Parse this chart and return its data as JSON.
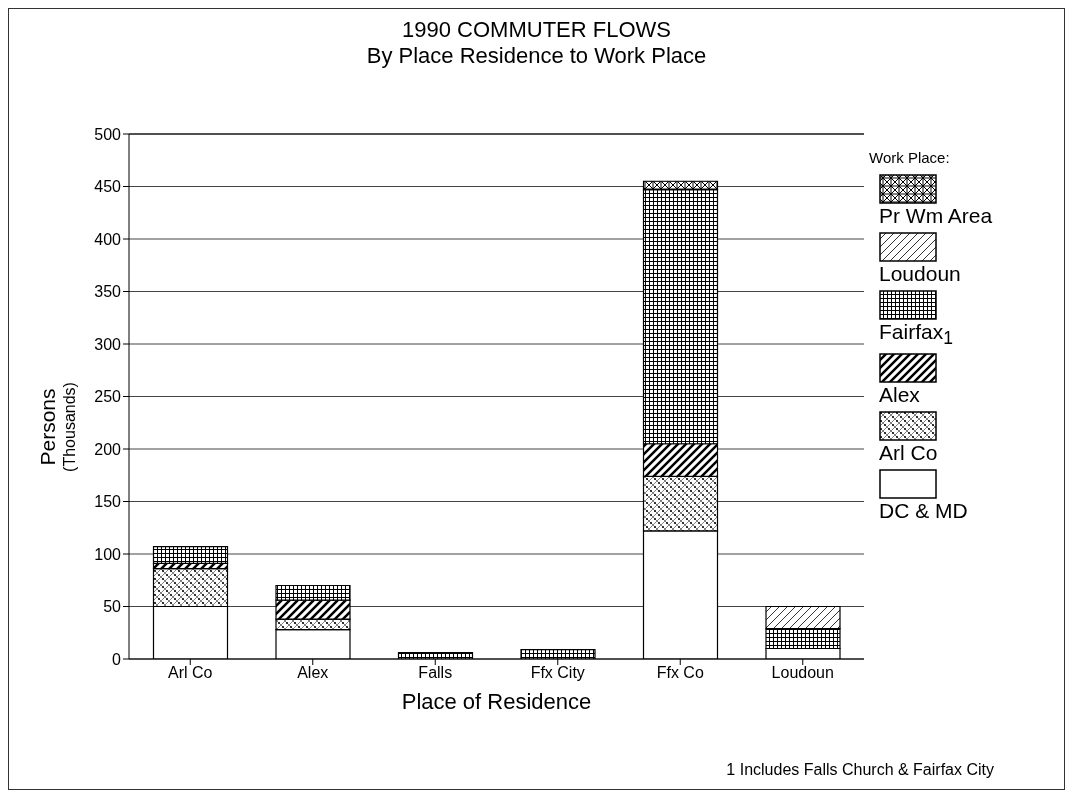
{
  "chart_data": {
    "type": "bar",
    "title": "1990 COMMUTER FLOWS",
    "subtitle": "By Place Residence to Work Place",
    "xlabel": "Place of Residence",
    "ylabel": "Persons\n(Thousands)",
    "legend_title": "Work Place:",
    "categories": [
      "Arl Co",
      "Alex",
      "Falls",
      "Ffx City",
      "Ffx Co",
      "Loudoun"
    ],
    "stacked": true,
    "series": [
      {
        "name": "DC & MD",
        "color": "#ffffff",
        "values": [
          50,
          28,
          0,
          0,
          122,
          10
        ]
      },
      {
        "name": "Arl Co",
        "color": "#000000",
        "values": [
          36,
          10,
          0,
          0,
          52,
          0
        ]
      },
      {
        "name": "Alex",
        "color": "#000000",
        "values": [
          5,
          18,
          0,
          0,
          31,
          0
        ]
      },
      {
        "name": "Fairfax$_{1}$",
        "color": "#000000",
        "values": [
          16,
          14,
          6,
          9,
          242,
          19
        ]
      },
      {
        "name": "Loudoun",
        "color": "#000000",
        "values": [
          0,
          0,
          0,
          0,
          0,
          21
        ]
      },
      {
        "name": "Pr Wm Area",
        "color": "#000000",
        "values": [
          0,
          0,
          0,
          0,
          8,
          0
        ]
      }
    ],
    "ylim": [
      0,
      500
    ],
    "yticks": [
      0,
      50,
      100,
      150,
      200,
      250,
      300,
      350,
      400,
      450,
      500
    ],
    "grid": "y",
    "legend": "right",
    "annotations": [
      "1  Includes Falls Church & Fairfax City"
    ]
  }
}
